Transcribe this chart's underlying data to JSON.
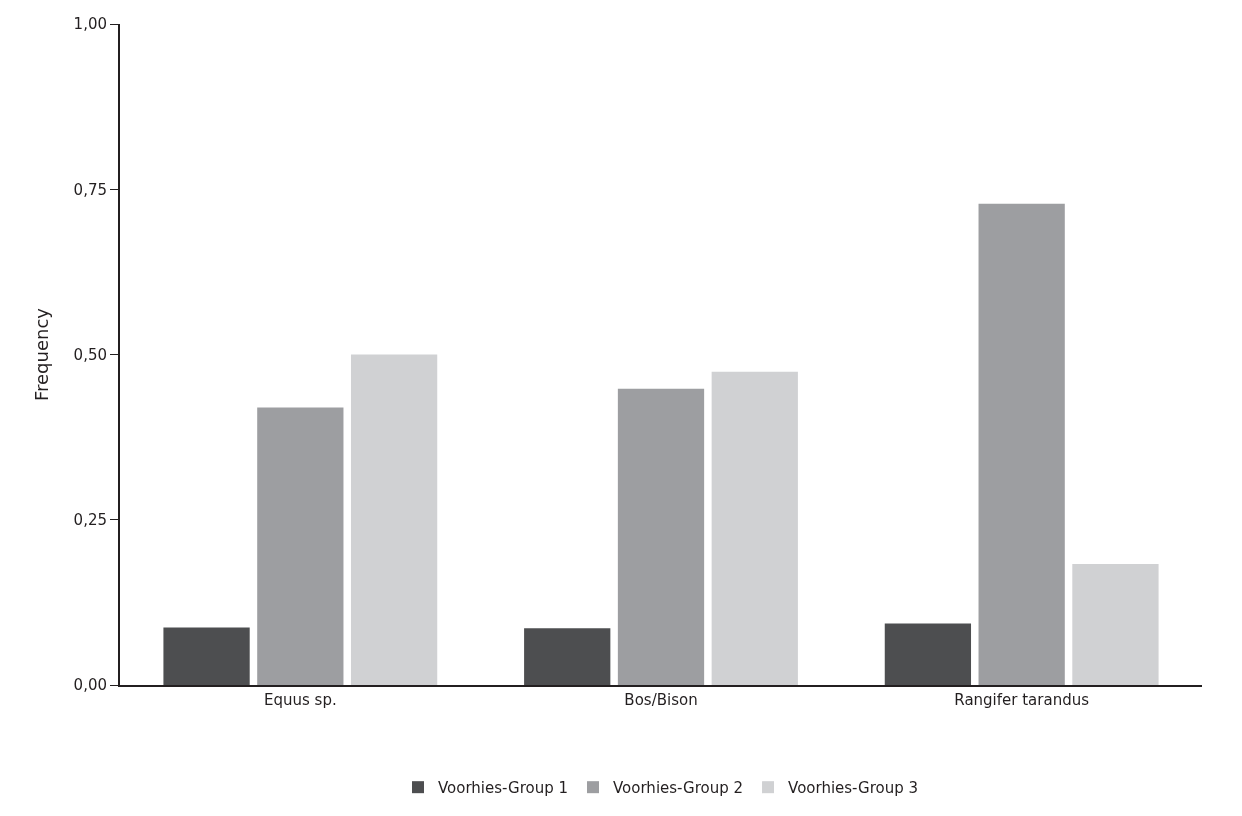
{
  "chart_data": {
    "type": "bar",
    "ylabel": "Frequency",
    "categories": [
      "Equus sp.",
      "Bos/Bison",
      "Rangifer tarandus"
    ],
    "series": [
      {
        "name": "Voorhies-Group 1",
        "color": "#4d4e50",
        "values": [
          0.087,
          0.086,
          0.093
        ]
      },
      {
        "name": "Voorhies-Group 2",
        "color": "#9d9ea1",
        "values": [
          0.42,
          0.448,
          0.728
        ]
      },
      {
        "name": "Voorhies-Group 3",
        "color": "#d0d1d3",
        "values": [
          0.5,
          0.474,
          0.183
        ]
      }
    ],
    "ylim": [
      0,
      1
    ],
    "yticks": [
      {
        "value": 0,
        "label": "0,00"
      },
      {
        "value": 0.25,
        "label": "0,25"
      },
      {
        "value": 0.5,
        "label": "0,50"
      },
      {
        "value": 0.75,
        "label": "0,75"
      },
      {
        "value": 1,
        "label": "1,00"
      }
    ],
    "legend": "bottom"
  }
}
